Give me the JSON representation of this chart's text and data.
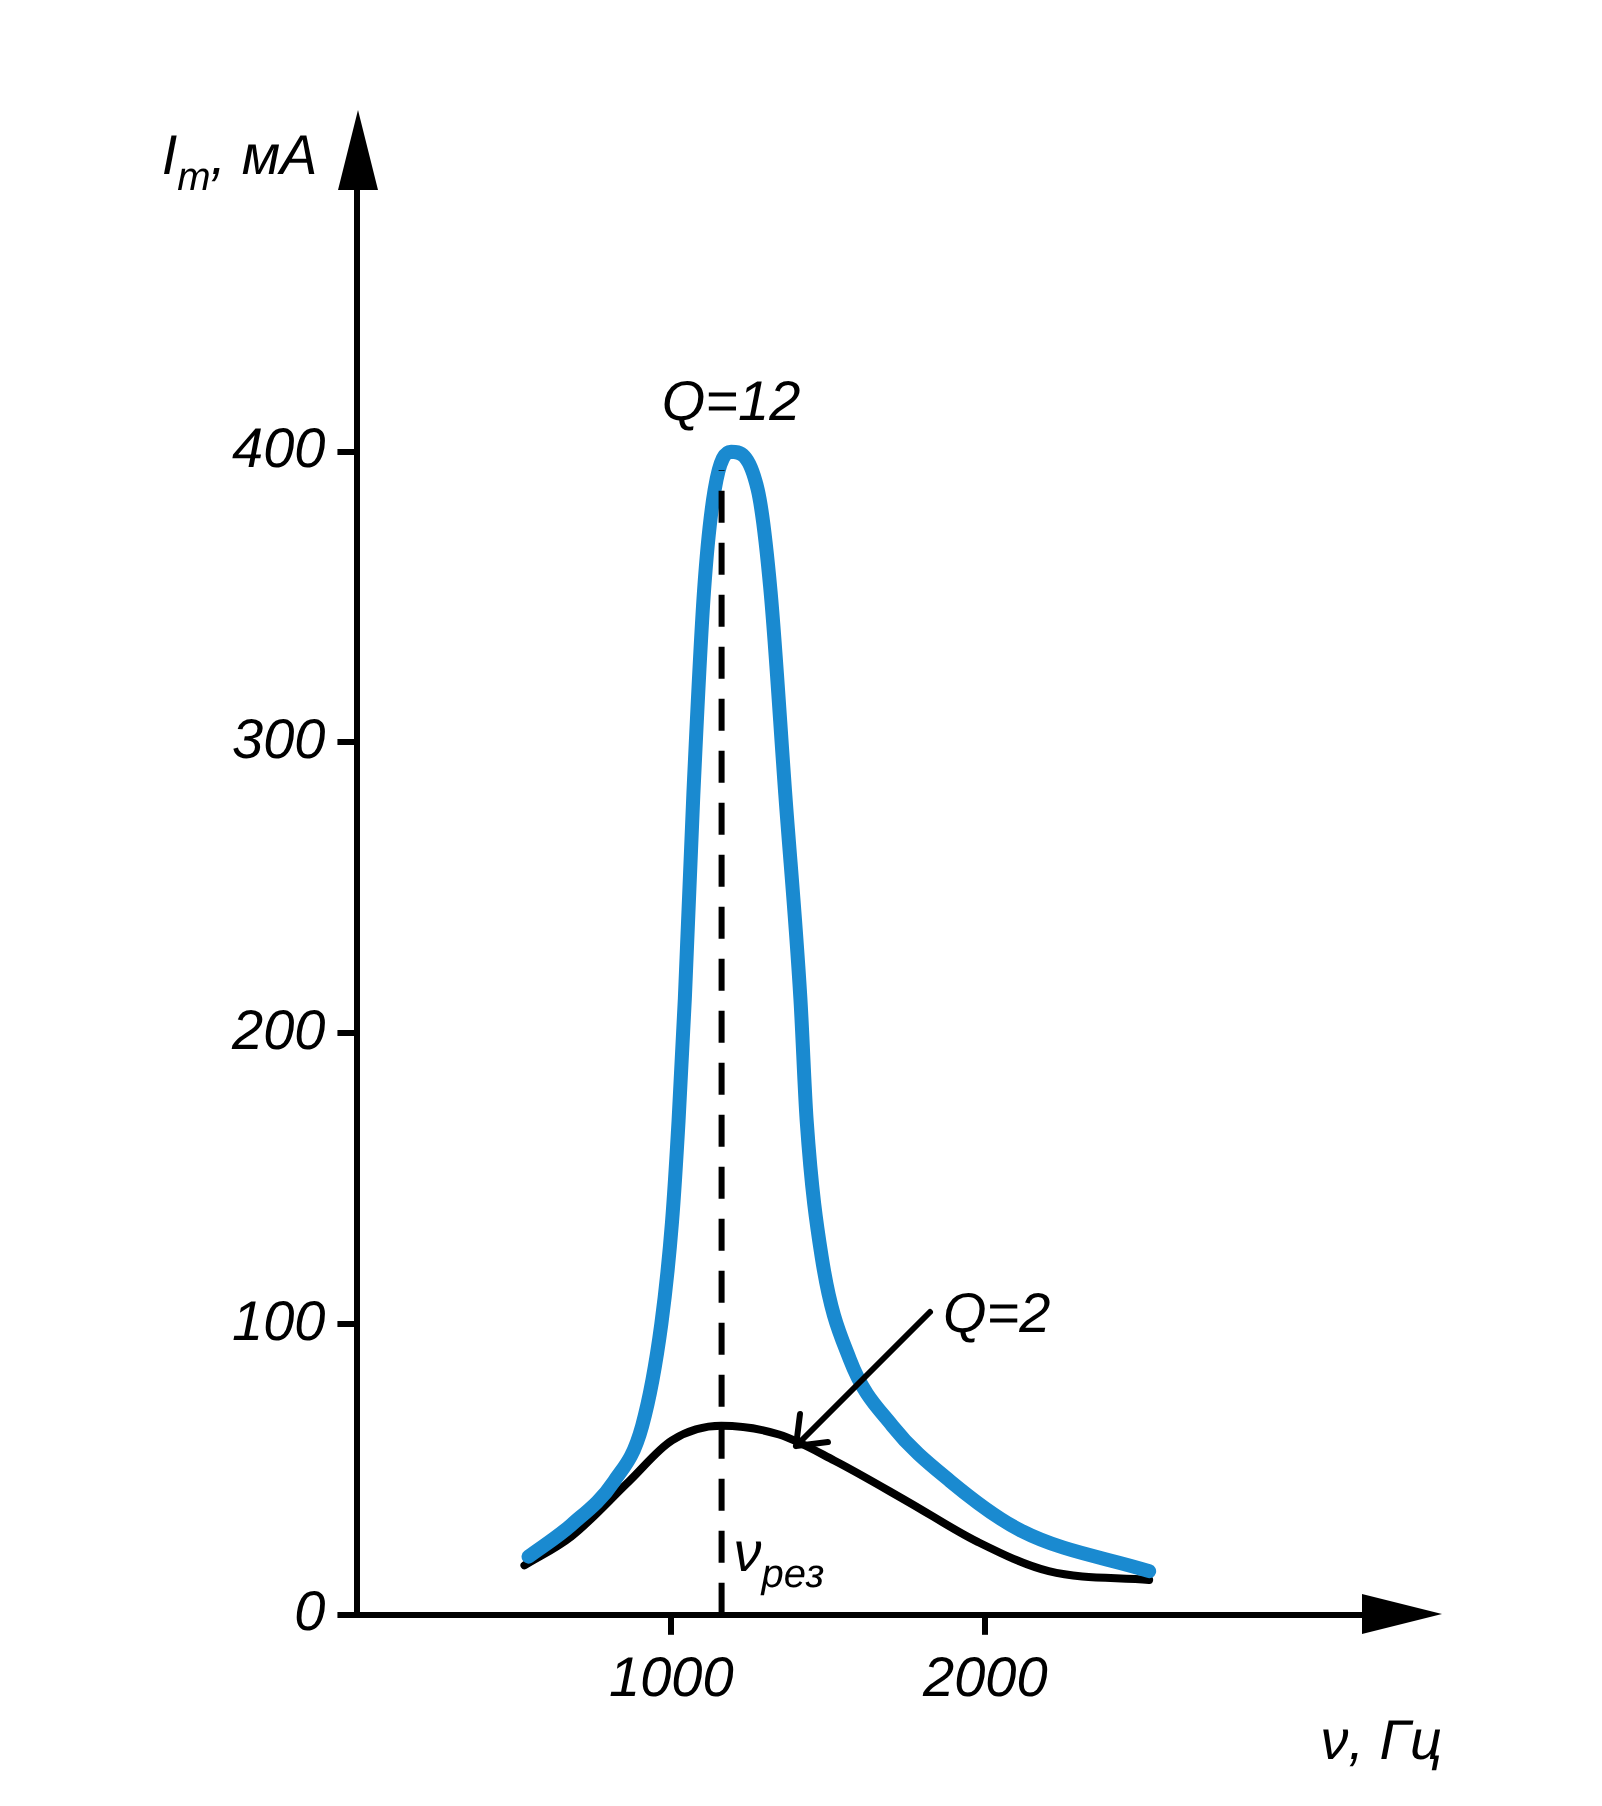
{
  "chart_data": {
    "type": "line",
    "xlabel": "ν, Гц",
    "ylabel": "I$_{m}$, мА",
    "marker": "none",
    "xlim": [
      0,
      3200
    ],
    "ylim": [
      0,
      490
    ],
    "xticks": [
      1000,
      2000
    ],
    "yticks": [
      0,
      100,
      200,
      300,
      400
    ],
    "series": [
      {
        "color": "#1a8ad0",
        "x": [
          545,
          682,
          818,
          907,
          968,
          1002,
          1023,
          1043,
          1070,
          1104,
          1138,
          1190,
          1275,
          1316,
          1363,
          1411,
          1431,
          1479,
          1568,
          1704,
          1888,
          2113,
          2522
        ],
        "values": [
          20,
          31,
          46,
          65,
          100,
          135,
          170,
          212,
          282,
          352,
          387,
          400,
          387,
          352,
          282,
          212,
          170,
          123,
          88,
          65,
          46,
          29,
          15
        ]
      },
      {
        "color": "#000000",
        "x": [
          532,
          682,
          866,
          1002,
          1159,
          1343,
          1520,
          1752,
          1977,
          2202,
          2522
        ],
        "values": [
          17,
          27,
          46,
          60,
          65,
          62,
          53,
          39,
          25,
          15,
          12
        ]
      }
    ],
    "ref_lines": [
      {
        "axis": "x",
        "value": 1160,
        "label": "ν$_{рез}$",
        "line_style": "dashed",
        "color": "#000000"
      }
    ],
    "annotations": [
      {
        "text": "Q=12",
        "x": 1190,
        "y": 400
      },
      {
        "text": "Q=2",
        "x": 1400,
        "y": 58
      }
    ]
  }
}
